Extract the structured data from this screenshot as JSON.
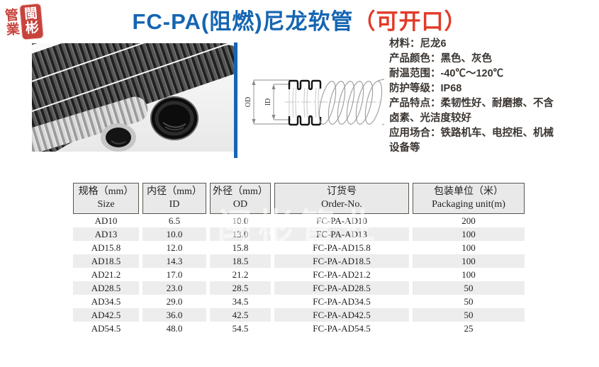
{
  "logo": {
    "left_chars": [
      "管",
      "業"
    ],
    "right_chars": [
      "閩",
      "彬"
    ]
  },
  "title": {
    "main": "FC-PA(阻燃)尼龙软管",
    "suffix": "（可开口）"
  },
  "drawing": {
    "od_label": "OD",
    "id_label": "ID"
  },
  "specs": {
    "lines": [
      "材料：尼龙6",
      "产品颜色：黑色、灰色",
      "耐温范围：-40℃～120℃",
      "防护等级：IP68",
      "产品特点：柔韧性好、耐磨擦、不含",
      "卤素、光洁度较好",
      "应用场合：铁路机车、电控柜、机械",
      "设备等"
    ]
  },
  "watermark": {
    "text": "闽彬管业"
  },
  "table": {
    "headers": [
      {
        "line1": "规格（mm）Size",
        "line2": ""
      },
      {
        "line1": "内径（mm）ID",
        "line2": ""
      },
      {
        "line1": "外径（mm）OD",
        "line2": ""
      },
      {
        "line1": "订货号",
        "line2": "Order-No."
      },
      {
        "line1": "包装单位（米）",
        "line2": "Packaging unit(m)"
      }
    ],
    "rows": [
      [
        "AD10",
        "6.5",
        "10.0",
        "FC-PA-AD10",
        "200"
      ],
      [
        "AD13",
        "10.0",
        "13.0",
        "FC-PA-AD13",
        "100"
      ],
      [
        "AD15.8",
        "12.0",
        "15.8",
        "FC-PA-AD15.8",
        "100"
      ],
      [
        "AD18.5",
        "14.3",
        "18.5",
        "FC-PA-AD18.5",
        "100"
      ],
      [
        "AD21.2",
        "17.0",
        "21.2",
        "FC-PA-AD21.2",
        "100"
      ],
      [
        "AD28.5",
        "23.0",
        "28.5",
        "FC-PA-AD28.5",
        "50"
      ],
      [
        "AD34.5",
        "29.0",
        "34.5",
        "FC-PA-AD34.5",
        "50"
      ],
      [
        "AD42.5",
        "36.0",
        "42.5",
        "FC-PA-AD42.5",
        "50"
      ],
      [
        "AD54.5",
        "48.0",
        "54.5",
        "FC-PA-AD54.5",
        "25"
      ]
    ]
  },
  "colors": {
    "accent_blue": "#1565b2",
    "accent_red": "#e23a27",
    "seal_red": "#c8433c",
    "header_bg": "#e9e9e9",
    "zebra_row": "#ededed"
  }
}
